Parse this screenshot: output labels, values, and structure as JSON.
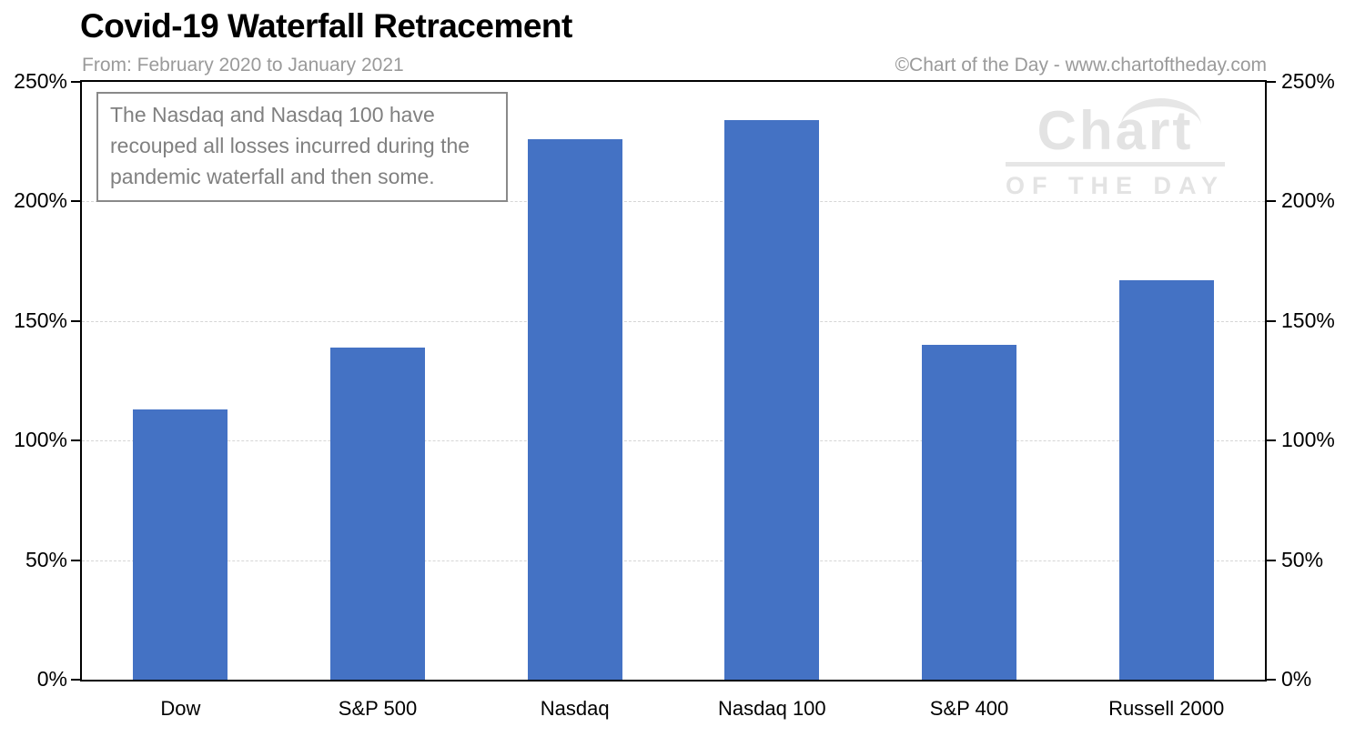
{
  "header": {
    "title": "Covid-19 Waterfall Retracement",
    "subtitle": "From: February 2020 to January 2021",
    "copyright": "©Chart of the Day - www.chartoftheday.com"
  },
  "annotation": {
    "text": "The Nasdaq and Nasdaq 100 have recouped all losses incurred during the pandemic waterfall and then some."
  },
  "watermark": {
    "line1": "Chart",
    "line2": "OF THE DAY"
  },
  "chart_data": {
    "type": "bar",
    "title": "Covid-19 Waterfall Retracement",
    "subtitle": "From: February 2020 to January 2021",
    "categories": [
      "Dow",
      "S&P 500",
      "Nasdaq",
      "Nasdaq 100",
      "S&P 400",
      "Russell 2000"
    ],
    "values": [
      113,
      139,
      226,
      234,
      140,
      167
    ],
    "unit": "%",
    "xlabel": "",
    "ylabel": "",
    "ylim": [
      0,
      250
    ],
    "ytick_values": [
      0,
      50,
      100,
      150,
      200,
      250
    ],
    "ytick_labels": [
      "0%",
      "50%",
      "100%",
      "150%",
      "200%",
      "250%"
    ],
    "grid": "horizontal-dashed",
    "legend": "none",
    "bar_color": "#4472C4"
  },
  "colors": {
    "bar": "#4472C4",
    "gridline": "#D6D6D6",
    "axis": "#000000",
    "muted_text": "#9A9A9A",
    "annotation_text": "#808080",
    "annotation_border": "#898989",
    "watermark": "#E3E3E3"
  }
}
